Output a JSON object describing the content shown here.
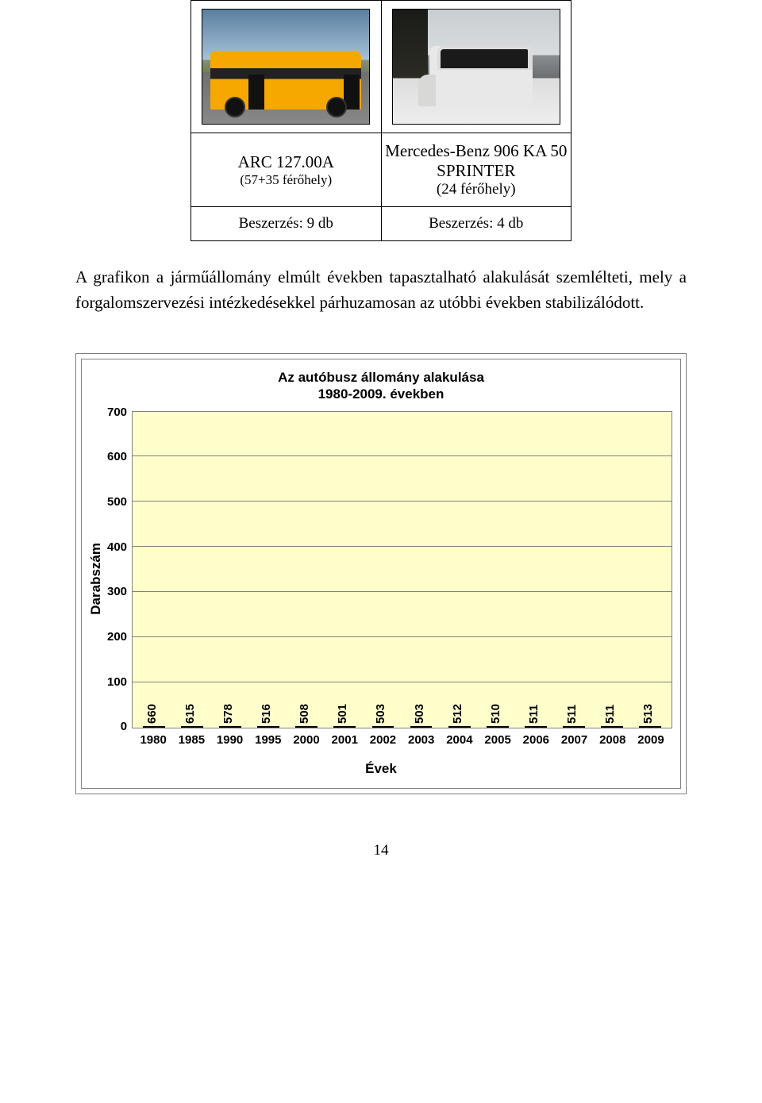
{
  "vehicles": {
    "left": {
      "name": "ARC 127.00A",
      "capacity": "(57+35 férőhely)",
      "procurement": "Beszerzés: 9 db"
    },
    "right": {
      "name": "Mercedes-Benz 906 KA 50 SPRINTER",
      "capacity": "(24 férőhely)",
      "procurement": "Beszerzés: 4 db"
    }
  },
  "paragraph": "A grafikon a járműállomány elmúlt években tapasztalható alakulását szemlélteti, mely a forgalomszervezési intézkedésekkel párhuzamosan az utóbbi években stabilizálódott.",
  "chart": {
    "type": "bar",
    "title_line1": "Az autóbusz állomány alakulása",
    "title_line2": "1980-2009. években",
    "ylabel": "Darabszám",
    "xlabel": "Évek",
    "ylim": [
      0,
      700
    ],
    "ytick_step": 100,
    "yticks": [
      "0",
      "100",
      "200",
      "300",
      "400",
      "500",
      "600",
      "700"
    ],
    "categories": [
      "1980",
      "1985",
      "1990",
      "1995",
      "2000",
      "2001",
      "2002",
      "2003",
      "2004",
      "2005",
      "2006",
      "2007",
      "2008",
      "2009"
    ],
    "values": [
      660,
      615,
      578,
      516,
      508,
      501,
      503,
      503,
      512,
      510,
      511,
      511,
      511,
      513
    ],
    "bar_fill_top": "#ffb340",
    "bar_fill_bottom": "#ff8c00",
    "bar_border": "#000000",
    "plot_background": "#ffffcc",
    "grid_color": "#808080",
    "label_fontsize": 17,
    "tick_fontsize": 15,
    "title_fontsize": 17
  },
  "page_number": "14"
}
